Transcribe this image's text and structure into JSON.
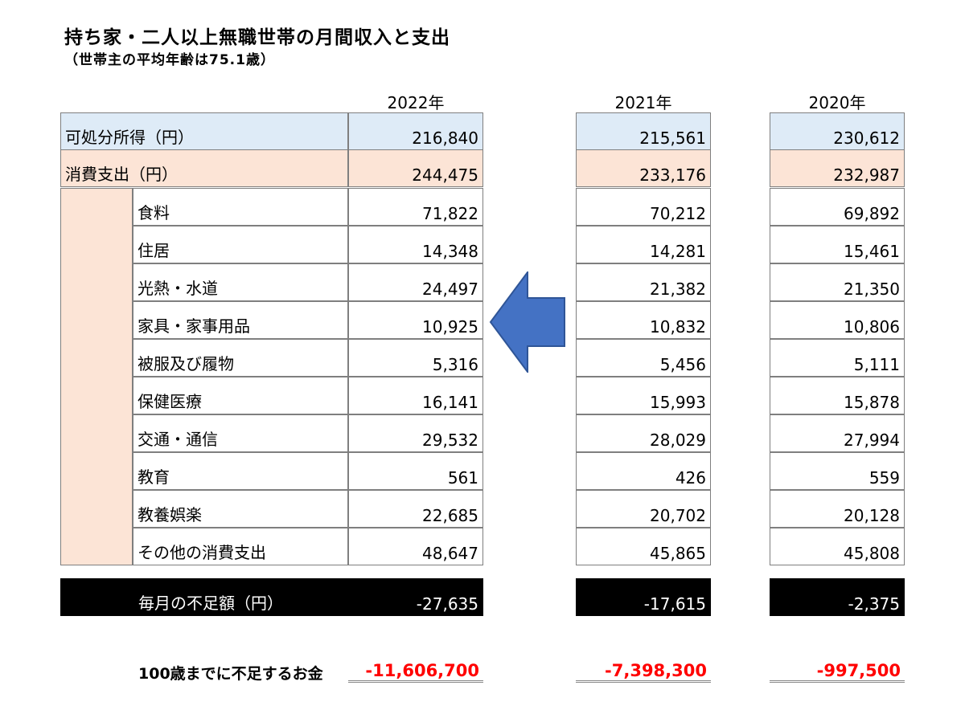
{
  "title": "持ち家・二人以上無職世帯の月間収入と支出",
  "subtitle": "（世帯主の平均年齢は75.1歳）",
  "years": [
    "2022年",
    "2021年",
    "2020年"
  ],
  "rows": [
    {
      "label": "可処分所得（円）",
      "values": [
        "216,840",
        "215,561",
        "230,612"
      ]
    },
    {
      "label": "消費支出（円）",
      "values": [
        "244,475",
        "233,176",
        "232,987"
      ]
    },
    {
      "label": "食料",
      "values": [
        "71,822",
        "70,212",
        "69,892"
      ]
    },
    {
      "label": "住居",
      "values": [
        "14,348",
        "14,281",
        "15,461"
      ]
    },
    {
      "label": "光熱・水道",
      "values": [
        "24,497",
        "21,382",
        "21,350"
      ]
    },
    {
      "label": "家具・家事用品",
      "values": [
        "10,925",
        "10,832",
        "10,806"
      ]
    },
    {
      "label": "被服及び履物",
      "values": [
        "5,316",
        "5,456",
        "5,111"
      ]
    },
    {
      "label": "保健医療",
      "values": [
        "16,141",
        "15,993",
        "15,878"
      ]
    },
    {
      "label": "交通・通信",
      "values": [
        "29,532",
        "28,029",
        "27,994"
      ]
    },
    {
      "label": "教育",
      "values": [
        "561",
        "426",
        "559"
      ]
    },
    {
      "label": "教養娯楽",
      "values": [
        "22,685",
        "20,702",
        "20,128"
      ]
    },
    {
      "label": "その他の消費支出",
      "values": [
        "48,647",
        "45,865",
        "45,808"
      ]
    }
  ],
  "deficit": {
    "label": "毎月の不足額（円）",
    "values": [
      "-27,635",
      "-17,615",
      "-2,375"
    ]
  },
  "total_shortfall": {
    "label": "100歳までに不足するお金",
    "values": [
      "-11,606,700",
      "-7,398,300",
      "-997,500"
    ]
  },
  "colors": {
    "income_bg": "#deebf7",
    "spending_bg": "#fce4d6",
    "arrow": "#4472c4",
    "shortfall_text": "#ff0000"
  },
  "arrow_icon": "left-arrow-icon"
}
